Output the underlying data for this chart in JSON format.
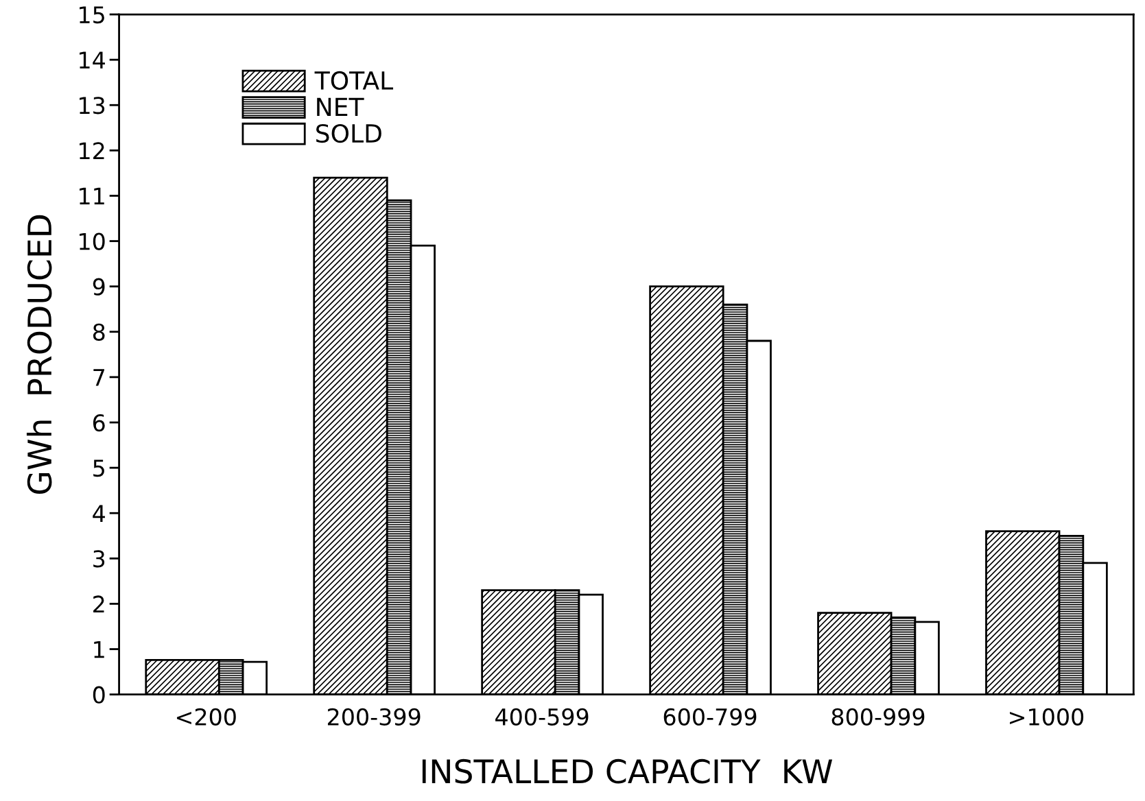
{
  "chart_data": {
    "type": "bar",
    "xlabel": "INSTALLED CAPACITY  KW",
    "ylabel": "GWh  PRODUCED",
    "categories": [
      "<200",
      "200-399",
      "400-599",
      "600-799",
      "800-999",
      ">1000"
    ],
    "series": [
      {
        "name": "TOTAL",
        "color": "#000000",
        "values": [
          0.76,
          11.4,
          2.3,
          9.0,
          1.8,
          3.6
        ]
      },
      {
        "name": "NET",
        "color": "#000000",
        "values": [
          0.76,
          10.9,
          2.3,
          8.6,
          1.7,
          3.5
        ]
      },
      {
        "name": "SOLD",
        "color": "#ffffff",
        "values": [
          0.72,
          9.9,
          2.2,
          7.8,
          1.6,
          2.9
        ]
      }
    ],
    "ylim": [
      0,
      15
    ],
    "yticks": [
      0,
      1,
      2,
      3,
      4,
      5,
      6,
      7,
      8,
      9,
      10,
      11,
      12,
      13,
      14,
      15
    ],
    "grid": false,
    "legend": "top left"
  }
}
